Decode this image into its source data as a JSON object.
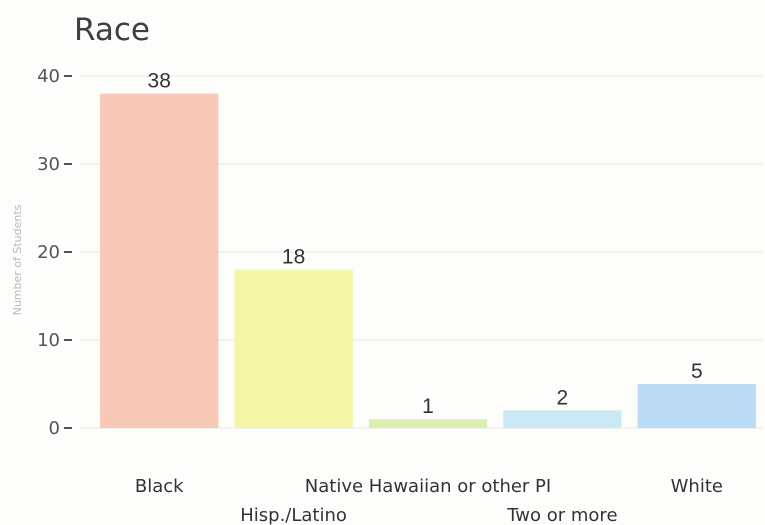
{
  "chart_data": {
    "type": "bar",
    "title": "Race",
    "xlabel": "",
    "ylabel": "Number of Students",
    "ylim": [
      0,
      40
    ],
    "yticks": [
      0,
      10,
      20,
      30,
      40
    ],
    "grid": true,
    "legend": "none",
    "categories": [
      "Black",
      "Hisp./Latino",
      "Native Hawaiian or other PI",
      "Two or more",
      "White"
    ],
    "values": [
      38,
      18,
      1,
      2,
      5
    ],
    "data_labels": [
      "38",
      "18",
      "1",
      "2",
      "5"
    ],
    "colors": [
      "#f8c9b6",
      "#f5f5a6",
      "#dbefb1",
      "#c9e9f4",
      "#bcdcf6"
    ]
  }
}
